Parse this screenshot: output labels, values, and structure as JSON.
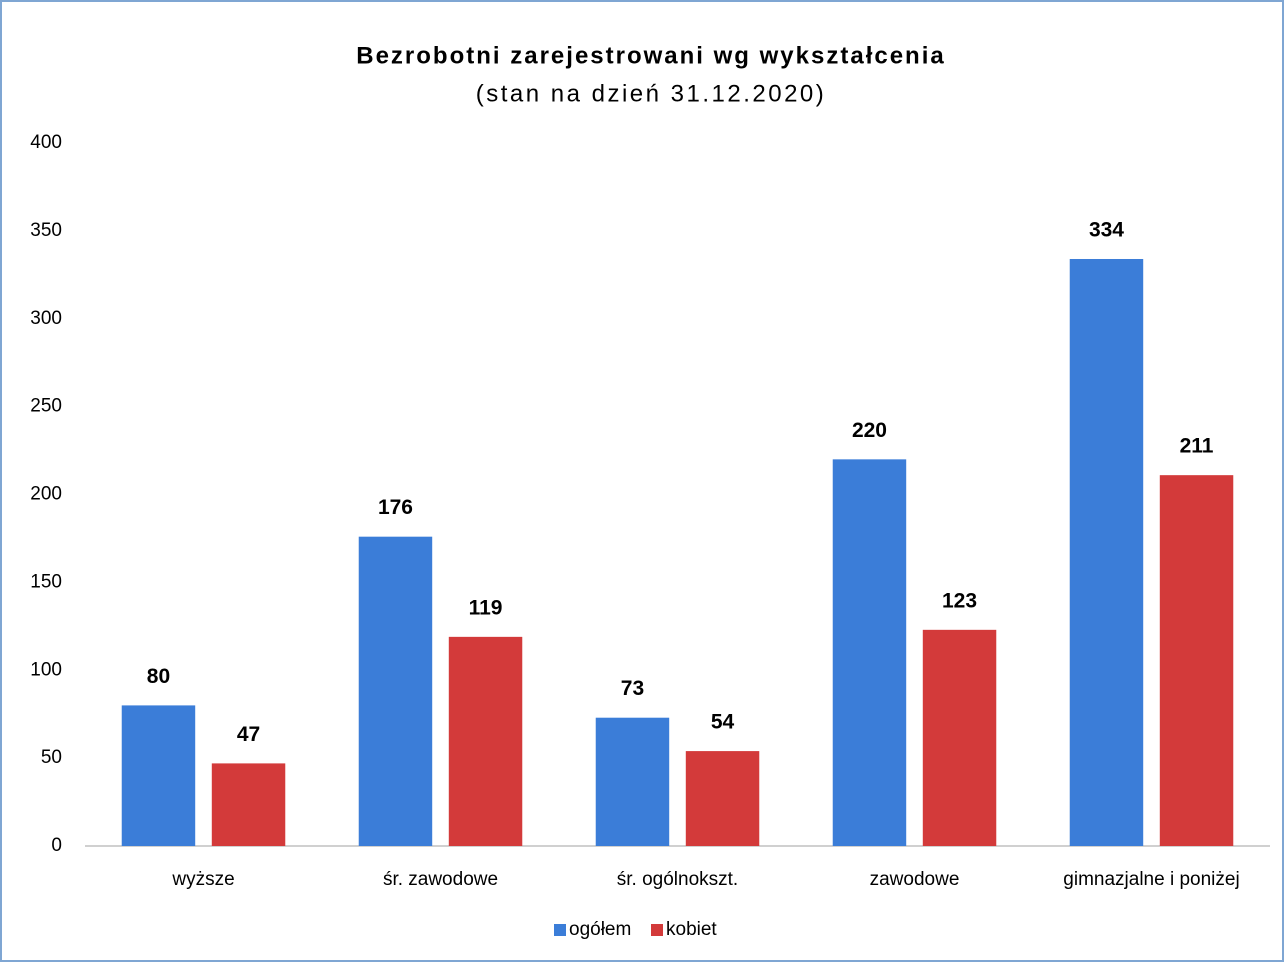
{
  "chart_data": {
    "type": "bar",
    "title": "Bezrobotni zarejestrowani wg wykształcenia",
    "subtitle": "(stan na dzień 31.12.2020)",
    "categories": [
      "wyższe",
      "śr. zawodowe",
      "śr. ogólnokszt.",
      "zawodowe",
      "gimnazjalne i poniżej"
    ],
    "series": [
      {
        "name": "ogółem",
        "color": "#3b7dd8",
        "values": [
          80,
          176,
          73,
          220,
          334
        ]
      },
      {
        "name": "kobiet",
        "color": "#d33a3a",
        "values": [
          47,
          119,
          54,
          123,
          211
        ]
      }
    ],
    "ylim": [
      0,
      400
    ],
    "yticks": [
      0,
      50,
      100,
      150,
      200,
      250,
      300,
      350,
      400
    ],
    "grid": false,
    "legend": "bottom"
  }
}
